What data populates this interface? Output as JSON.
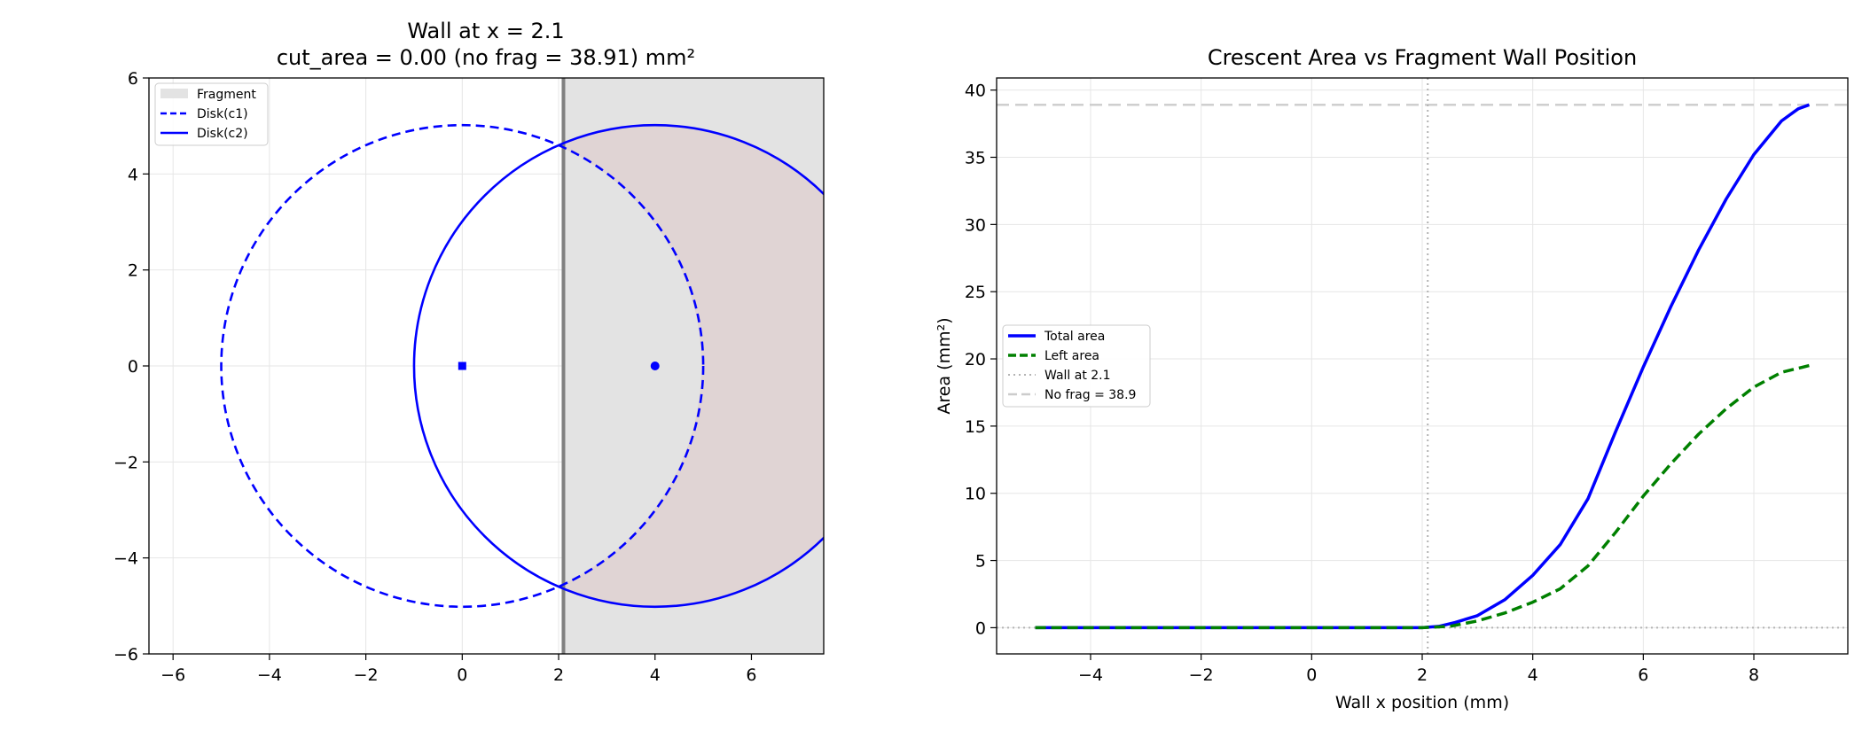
{
  "chart_data": [
    {
      "type": "geometry",
      "title_line1": "Wall at x = 2.1",
      "title_line2": "cut_area = 0.00  (no frag = 38.91) mm²",
      "xlim": [
        -6.5,
        7.5
      ],
      "ylim": [
        -6,
        6
      ],
      "x_ticks": [
        -6,
        -4,
        -2,
        0,
        2,
        4,
        6
      ],
      "y_ticks": [
        -6,
        -4,
        -2,
        0,
        2,
        4,
        6
      ],
      "grid": true,
      "wall_x": 2.1,
      "circle1": {
        "cx": 0,
        "cy": 0,
        "r": 5,
        "style": "dashed"
      },
      "circle2": {
        "cx": 4,
        "cy": 0,
        "r": 5,
        "style": "solid"
      },
      "legend_position": "upper-left",
      "legend": [
        "Fragment",
        "Disk(c1)",
        "Disk(c2)"
      ],
      "colors": {
        "circles": "#0000ff",
        "fragment": "#e3e3e3",
        "crescent": "#e0d4d4",
        "wall": "#808080",
        "grid": "#e6e6e6"
      }
    },
    {
      "type": "line",
      "title": "Crescent Area vs Fragment Wall Position",
      "xlabel": "Wall x position (mm)",
      "ylabel": "Area (mm²)",
      "xlim": [
        -5.7,
        9.7
      ],
      "ylim": [
        -1.95,
        40.9
      ],
      "x_ticks": [
        -4,
        -2,
        0,
        2,
        4,
        6,
        8
      ],
      "y_ticks": [
        0,
        5,
        10,
        15,
        20,
        25,
        30,
        35,
        40
      ],
      "grid": true,
      "legend_position": "center-left",
      "wall_x": 2.1,
      "no_frag_value": 38.9,
      "series": [
        {
          "name": "Total area",
          "color": "#0000ff",
          "style": "solid",
          "x": [
            -5,
            -3,
            -1,
            1,
            2,
            2.3,
            2.6,
            3,
            3.5,
            4,
            4.5,
            5,
            5.5,
            6,
            6.5,
            7,
            7.5,
            8,
            8.5,
            8.8,
            9
          ],
          "y": [
            0,
            0,
            0,
            0,
            0,
            0.1,
            0.4,
            0.9,
            2.1,
            3.9,
            6.2,
            9.6,
            14.6,
            19.4,
            23.9,
            28.1,
            31.9,
            35.2,
            37.7,
            38.6,
            38.9
          ]
        },
        {
          "name": "Left area",
          "color": "#008000",
          "style": "dashed",
          "x": [
            -5,
            -3,
            -1,
            1,
            2,
            2.5,
            3,
            3.5,
            4,
            4.5,
            5,
            5.5,
            6,
            6.5,
            7,
            7.5,
            8,
            8.5,
            9
          ],
          "y": [
            0,
            0,
            0,
            0,
            0,
            0.1,
            0.5,
            1.1,
            1.9,
            2.9,
            4.6,
            7.1,
            9.8,
            12.2,
            14.4,
            16.3,
            17.9,
            19.0,
            19.5
          ]
        }
      ],
      "legend": [
        "Total area",
        "Left area",
        "Wall at 2.1",
        "No frag = 38.9"
      ],
      "colors": {
        "wall": "#b3b3b3",
        "no_frag": "#cccccc",
        "zero_line": "#b3b3b3",
        "grid": "#e6e6e6"
      }
    }
  ]
}
